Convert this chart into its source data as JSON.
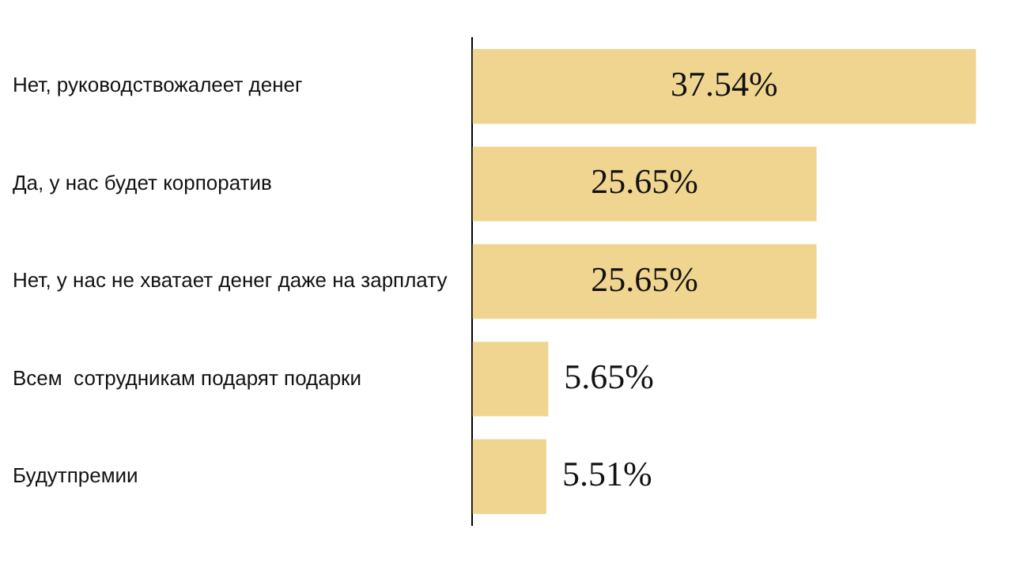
{
  "chart_data": {
    "type": "bar",
    "orientation": "horizontal",
    "categories": [
      "Нет, руководствожалеет денег",
      "Да, у нас будет корпоратив",
      "Нет, у нас не хватает денег даже на зарплату",
      "Всем  сотрудникам подарят подарки",
      "Будутпремии"
    ],
    "values": [
      37.54,
      25.65,
      25.65,
      5.65,
      5.51
    ],
    "value_labels": [
      "37.54%",
      "25.65%",
      "25.65%",
      "5.65%",
      "5.51%"
    ],
    "color": "#f0d590",
    "grid": false,
    "legend": false
  }
}
